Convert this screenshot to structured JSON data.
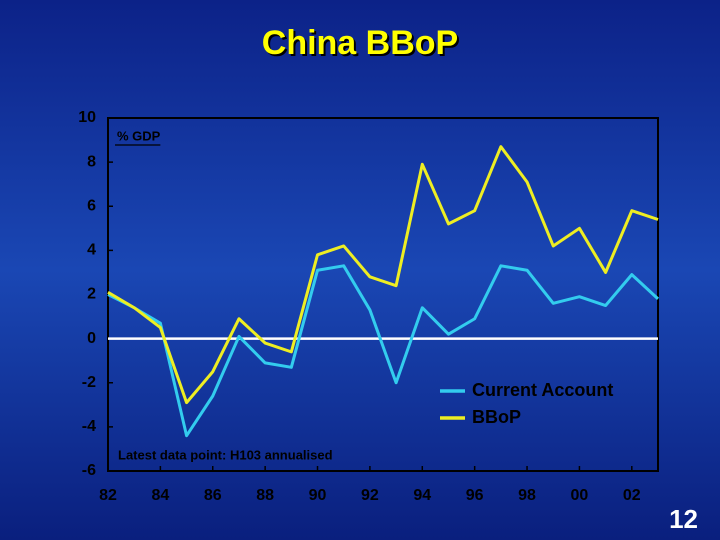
{
  "chart_data": {
    "type": "line",
    "title": "China BBoP",
    "unit_label": "% GDP",
    "annotation": "Latest data point: H103 annualised",
    "page_number": "12",
    "x": [
      1982,
      1983,
      1984,
      1985,
      1986,
      1987,
      1988,
      1989,
      1990,
      1991,
      1992,
      1993,
      1994,
      1995,
      1996,
      1997,
      1998,
      1999,
      2000,
      2001,
      2002,
      2003
    ],
    "series": [
      {
        "name": "Current Account",
        "color": "#33ccee",
        "values": [
          2.0,
          1.4,
          0.7,
          -4.4,
          -2.6,
          0.1,
          -1.1,
          -1.3,
          3.1,
          3.3,
          1.3,
          -2.0,
          1.4,
          0.2,
          0.9,
          3.3,
          3.1,
          1.6,
          1.9,
          1.5,
          2.9,
          1.8
        ]
      },
      {
        "name": "BBoP",
        "color": "#eeee22",
        "values": [
          2.1,
          1.4,
          0.5,
          -2.9,
          -1.5,
          0.9,
          -0.2,
          -0.6,
          3.8,
          4.2,
          2.8,
          2.4,
          7.9,
          5.2,
          5.8,
          8.7,
          7.1,
          4.2,
          5.0,
          3.0,
          5.8,
          5.4
        ]
      }
    ],
    "xlim": [
      1982,
      2003
    ],
    "xticks": [
      {
        "value": 1982,
        "label": "82"
      },
      {
        "value": 1984,
        "label": "84"
      },
      {
        "value": 1986,
        "label": "86"
      },
      {
        "value": 1988,
        "label": "88"
      },
      {
        "value": 1990,
        "label": "90"
      },
      {
        "value": 1992,
        "label": "92"
      },
      {
        "value": 1994,
        "label": "94"
      },
      {
        "value": 1996,
        "label": "96"
      },
      {
        "value": 1998,
        "label": "98"
      },
      {
        "value": 2000,
        "label": "00"
      },
      {
        "value": 2002,
        "label": "02"
      }
    ],
    "ylim": [
      -6,
      10
    ],
    "yticks": [
      -6,
      -4,
      -2,
      0,
      2,
      4,
      6,
      8,
      10
    ],
    "reference_line": 0,
    "grid": false,
    "legend_position": "lower right"
  }
}
